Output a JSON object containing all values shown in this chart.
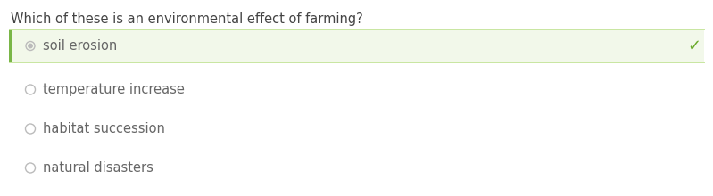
{
  "question": "Which of these is an environmental effect of farming?",
  "options": [
    "soil erosion",
    "temperature increase",
    "habitat succession",
    "natural disasters"
  ],
  "correct_index": 0,
  "bg_color": "#ffffff",
  "question_color": "#444444",
  "option_color": "#666666",
  "selected_bg": "#f2f8ea",
  "selected_left_bar": "#7ab648",
  "check_color": "#6aaa2a",
  "radio_color": "#bbbbbb",
  "question_fontsize": 10.5,
  "option_fontsize": 10.5,
  "figsize": [
    7.99,
    2.2
  ],
  "dpi": 100
}
